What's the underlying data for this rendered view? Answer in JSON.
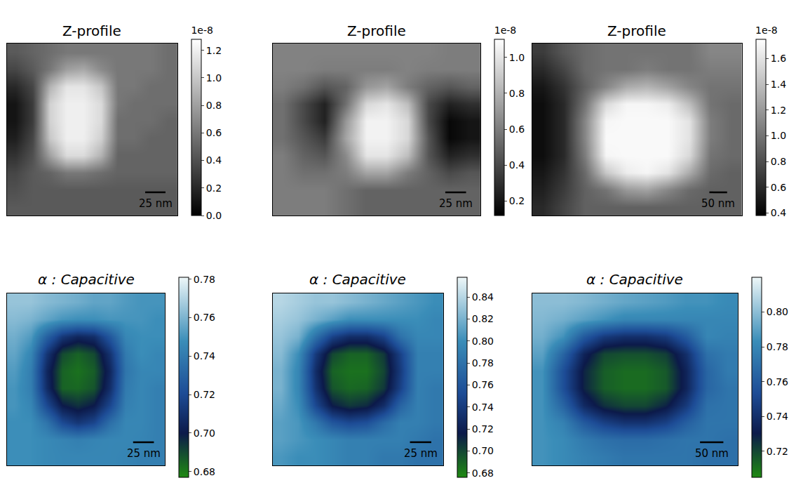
{
  "chart_data": [
    {
      "type": "heatmap",
      "title": "Z-profile",
      "xlim": [
        0,
        210
      ],
      "ylim": [
        0,
        210
      ],
      "tick_labels": false,
      "scale_bar": {
        "label": "25 nm",
        "length": 25
      },
      "color_range": [
        0,
        1.28
      ],
      "color_label": "1e-8",
      "color_ticks": [
        {
          "value": 0,
          "label": "0.0"
        },
        0.2,
        0.4,
        0.6,
        0.8,
        {
          "value": 1,
          "label": "1.0"
        },
        1.2
      ],
      "cells": [
        [
          0.45,
          0.5,
          0.55,
          0.6,
          0.6,
          0.6,
          0.6,
          0.6,
          0.6,
          0.55
        ],
        [
          0.35,
          0.45,
          0.6,
          0.8,
          0.85,
          0.7,
          0.6,
          0.6,
          0.6,
          0.55
        ],
        [
          0.2,
          0.35,
          0.9,
          1.15,
          1.15,
          1.0,
          0.6,
          0.6,
          0.55,
          0.55
        ],
        [
          0.1,
          0.3,
          1.05,
          1.2,
          1.2,
          1.1,
          0.6,
          0.55,
          0.55,
          0.55
        ],
        [
          0.1,
          0.3,
          1.05,
          1.2,
          1.2,
          1.1,
          0.55,
          0.55,
          0.55,
          0.5
        ],
        [
          0.15,
          0.35,
          1.0,
          1.2,
          1.2,
          1.05,
          0.55,
          0.55,
          0.5,
          0.5
        ],
        [
          0.25,
          0.4,
          0.8,
          1.1,
          1.1,
          0.9,
          0.5,
          0.5,
          0.5,
          0.5
        ],
        [
          0.35,
          0.45,
          0.5,
          0.6,
          0.6,
          0.55,
          0.5,
          0.5,
          0.5,
          0.5
        ],
        [
          0.4,
          0.45,
          0.45,
          0.45,
          0.45,
          0.45,
          0.45,
          0.45,
          0.45,
          0.45
        ],
        [
          0.45,
          0.45,
          0.45,
          0.45,
          0.45,
          0.45,
          0.45,
          0.45,
          0.45,
          0.45
        ]
      ]
    },
    {
      "type": "heatmap",
      "title": "Z-profile",
      "xlim": [
        0,
        250
      ],
      "ylim": [
        0,
        205
      ],
      "tick_labels": false,
      "scale_bar": {
        "label": "25 nm",
        "length": 25
      },
      "color_range": [
        0.12,
        1.1
      ],
      "color_label": "1e-8",
      "color_ticks": [
        0.2,
        0.4,
        0.6,
        0.8,
        {
          "value": 1,
          "label": "1.0"
        }
      ],
      "cells": [
        [
          0.62,
          0.62,
          0.62,
          0.62,
          0.62,
          0.62,
          0.62,
          0.62,
          0.6,
          0.6
        ],
        [
          0.62,
          0.62,
          0.6,
          0.6,
          0.6,
          0.6,
          0.62,
          0.6,
          0.6,
          0.6
        ],
        [
          0.6,
          0.55,
          0.45,
          0.5,
          0.7,
          0.75,
          0.6,
          0.5,
          0.45,
          0.5
        ],
        [
          0.55,
          0.4,
          0.25,
          0.55,
          0.95,
          1.0,
          0.85,
          0.4,
          0.25,
          0.3
        ],
        [
          0.55,
          0.4,
          0.25,
          0.7,
          1.05,
          1.05,
          0.95,
          0.4,
          0.15,
          0.2
        ],
        [
          0.55,
          0.45,
          0.35,
          0.75,
          1.05,
          1.05,
          0.95,
          0.45,
          0.15,
          0.2
        ],
        [
          0.6,
          0.5,
          0.45,
          0.65,
          1.0,
          1.0,
          0.85,
          0.45,
          0.25,
          0.3
        ],
        [
          0.6,
          0.55,
          0.55,
          0.6,
          0.75,
          0.75,
          0.6,
          0.5,
          0.4,
          0.45
        ],
        [
          0.6,
          0.6,
          0.6,
          0.55,
          0.5,
          0.5,
          0.5,
          0.5,
          0.5,
          0.5
        ],
        [
          0.6,
          0.6,
          0.6,
          0.55,
          0.5,
          0.5,
          0.5,
          0.5,
          0.5,
          0.5
        ]
      ]
    },
    {
      "type": "heatmap",
      "title": "Z-profile",
      "xlim": [
        0,
        590
      ],
      "ylim": [
        0,
        480
      ],
      "tick_labels": false,
      "scale_bar": {
        "label": "50 nm",
        "length": 50
      },
      "color_range": [
        0.38,
        1.75
      ],
      "color_label": "1e-8",
      "color_ticks": [
        0.4,
        0.6,
        0.8,
        {
          "value": 1,
          "label": "1.0"
        },
        1.2,
        1.4,
        1.6
      ],
      "cells": [
        [
          0.7,
          0.85,
          0.95,
          1.0,
          1.0,
          1.0,
          1.0,
          1.0,
          1.1,
          1.1
        ],
        [
          0.6,
          0.75,
          0.95,
          1.0,
          1.0,
          1.05,
          1.0,
          1.0,
          1.05,
          1.05
        ],
        [
          0.5,
          0.65,
          0.9,
          1.1,
          1.3,
          1.35,
          1.25,
          1.1,
          1.0,
          1.0
        ],
        [
          0.45,
          0.6,
          1.0,
          1.55,
          1.7,
          1.7,
          1.65,
          1.4,
          1.0,
          0.95
        ],
        [
          0.45,
          0.6,
          1.1,
          1.7,
          1.72,
          1.72,
          1.72,
          1.6,
          1.05,
          0.95
        ],
        [
          0.45,
          0.6,
          1.1,
          1.72,
          1.72,
          1.72,
          1.72,
          1.6,
          1.05,
          0.95
        ],
        [
          0.45,
          0.6,
          1.05,
          1.7,
          1.72,
          1.72,
          1.72,
          1.55,
          1.0,
          0.95
        ],
        [
          0.5,
          0.65,
          0.95,
          1.45,
          1.65,
          1.7,
          1.6,
          1.3,
          0.95,
          0.9
        ],
        [
          0.55,
          0.7,
          0.9,
          1.0,
          1.2,
          1.25,
          1.1,
          0.95,
          0.9,
          0.9
        ],
        [
          0.6,
          0.75,
          0.9,
          0.9,
          0.9,
          0.9,
          0.9,
          0.9,
          0.9,
          0.9
        ]
      ]
    },
    {
      "type": "heatmap",
      "title": "α : Capacitive",
      "xlim": [
        0,
        190
      ],
      "ylim": [
        0,
        205
      ],
      "tick_labels": false,
      "scale_bar": {
        "label": "25 nm",
        "length": 25
      },
      "color_range": [
        0.677,
        0.781
      ],
      "color_ticks": [
        0.68,
        {
          "value": 0.7,
          "label": "0.70"
        },
        0.72,
        0.74,
        0.76,
        0.78
      ],
      "cells": [
        [
          0.765,
          0.765,
          0.762,
          0.76,
          0.758,
          0.755,
          0.755,
          0.752,
          0.75,
          0.75
        ],
        [
          0.762,
          0.76,
          0.755,
          0.75,
          0.748,
          0.748,
          0.75,
          0.75,
          0.75,
          0.748
        ],
        [
          0.758,
          0.752,
          0.73,
          0.712,
          0.705,
          0.708,
          0.725,
          0.745,
          0.748,
          0.748
        ],
        [
          0.755,
          0.745,
          0.712,
          0.69,
          0.685,
          0.69,
          0.71,
          0.74,
          0.748,
          0.745
        ],
        [
          0.752,
          0.742,
          0.706,
          0.685,
          0.682,
          0.686,
          0.705,
          0.738,
          0.745,
          0.745
        ],
        [
          0.75,
          0.742,
          0.708,
          0.685,
          0.684,
          0.688,
          0.708,
          0.74,
          0.745,
          0.742
        ],
        [
          0.75,
          0.745,
          0.72,
          0.7,
          0.695,
          0.7,
          0.718,
          0.742,
          0.745,
          0.742
        ],
        [
          0.748,
          0.748,
          0.738,
          0.72,
          0.712,
          0.718,
          0.735,
          0.745,
          0.745,
          0.742
        ],
        [
          0.748,
          0.748,
          0.746,
          0.744,
          0.742,
          0.744,
          0.745,
          0.745,
          0.744,
          0.742
        ],
        [
          0.748,
          0.748,
          0.746,
          0.745,
          0.745,
          0.745,
          0.745,
          0.744,
          0.742,
          0.742
        ]
      ]
    },
    {
      "type": "heatmap",
      "title": "α : Capacitive",
      "xlim": [
        0,
        200
      ],
      "ylim": [
        0,
        200
      ],
      "tick_labels": false,
      "scale_bar": {
        "label": "25 nm",
        "length": 25
      },
      "color_range": [
        0.676,
        0.858
      ],
      "color_ticks": [
        0.68,
        {
          "value": 0.7,
          "label": "0.70"
        },
        0.72,
        0.74,
        0.76,
        0.78,
        {
          "value": 0.8,
          "label": "0.80"
        },
        0.82,
        0.84
      ],
      "cells": [
        [
          0.84,
          0.835,
          0.83,
          0.83,
          0.825,
          0.82,
          0.815,
          0.81,
          0.805,
          0.8
        ],
        [
          0.835,
          0.83,
          0.82,
          0.81,
          0.8,
          0.8,
          0.8,
          0.8,
          0.8,
          0.795
        ],
        [
          0.83,
          0.82,
          0.78,
          0.745,
          0.73,
          0.73,
          0.745,
          0.78,
          0.795,
          0.795
        ],
        [
          0.825,
          0.8,
          0.74,
          0.7,
          0.69,
          0.69,
          0.705,
          0.745,
          0.79,
          0.79
        ],
        [
          0.82,
          0.795,
          0.73,
          0.69,
          0.685,
          0.685,
          0.7,
          0.74,
          0.79,
          0.79
        ],
        [
          0.82,
          0.795,
          0.735,
          0.695,
          0.688,
          0.69,
          0.705,
          0.745,
          0.79,
          0.785
        ],
        [
          0.815,
          0.8,
          0.75,
          0.715,
          0.705,
          0.71,
          0.73,
          0.77,
          0.79,
          0.785
        ],
        [
          0.81,
          0.805,
          0.785,
          0.76,
          0.75,
          0.755,
          0.775,
          0.79,
          0.79,
          0.785
        ],
        [
          0.81,
          0.805,
          0.8,
          0.795,
          0.79,
          0.79,
          0.79,
          0.79,
          0.785,
          0.78
        ],
        [
          0.805,
          0.8,
          0.8,
          0.795,
          0.79,
          0.79,
          0.785,
          0.785,
          0.78,
          0.78
        ]
      ]
    },
    {
      "type": "heatmap",
      "title": "α : Capacitive",
      "xlim": [
        0,
        440
      ],
      "ylim": [
        0,
        365
      ],
      "tick_labels": false,
      "scale_bar": {
        "label": "50 nm",
        "length": 50
      },
      "color_range": [
        0.705,
        0.82
      ],
      "color_ticks": [
        0.72,
        0.74,
        0.76,
        0.78,
        {
          "value": 0.8,
          "label": "0.80"
        }
      ],
      "cells": [
        [
          0.8,
          0.8,
          0.798,
          0.795,
          0.792,
          0.79,
          0.788,
          0.785,
          0.785,
          0.782
        ],
        [
          0.798,
          0.795,
          0.79,
          0.785,
          0.78,
          0.78,
          0.78,
          0.78,
          0.78,
          0.78
        ],
        [
          0.795,
          0.785,
          0.76,
          0.745,
          0.74,
          0.74,
          0.745,
          0.76,
          0.78,
          0.778
        ],
        [
          0.79,
          0.765,
          0.735,
          0.72,
          0.718,
          0.718,
          0.722,
          0.74,
          0.77,
          0.775
        ],
        [
          0.785,
          0.755,
          0.728,
          0.715,
          0.712,
          0.712,
          0.716,
          0.735,
          0.765,
          0.775
        ],
        [
          0.785,
          0.755,
          0.728,
          0.715,
          0.712,
          0.712,
          0.716,
          0.735,
          0.765,
          0.772
        ],
        [
          0.785,
          0.765,
          0.738,
          0.725,
          0.72,
          0.72,
          0.728,
          0.745,
          0.77,
          0.772
        ],
        [
          0.785,
          0.778,
          0.76,
          0.748,
          0.742,
          0.742,
          0.748,
          0.762,
          0.772,
          0.772
        ],
        [
          0.785,
          0.782,
          0.775,
          0.77,
          0.768,
          0.768,
          0.77,
          0.772,
          0.772,
          0.77
        ],
        [
          0.785,
          0.782,
          0.778,
          0.775,
          0.772,
          0.772,
          0.772,
          0.772,
          0.77,
          0.77
        ]
      ]
    }
  ]
}
